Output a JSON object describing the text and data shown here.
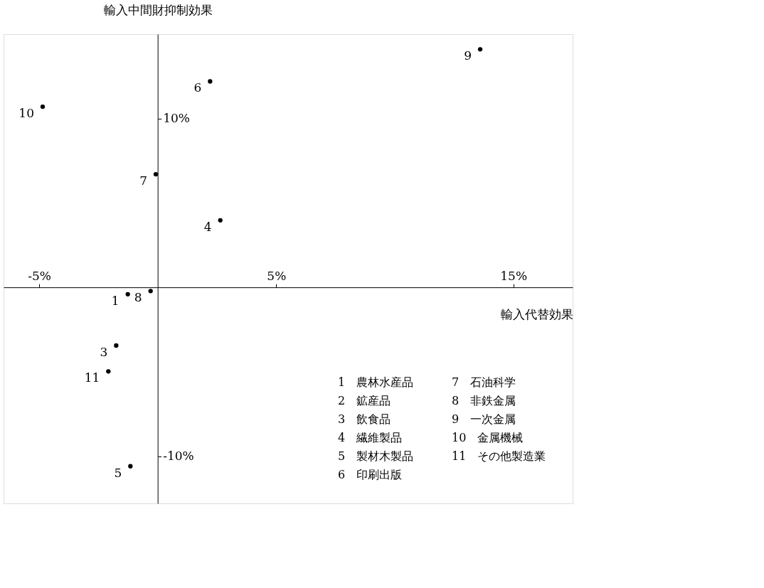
{
  "chart_data": {
    "type": "scatter",
    "xlabel": "輸入代替効果",
    "ylabel": "輸入中間財抑制効果",
    "xlim": [
      -6.5,
      17.5
    ],
    "ylim": [
      -12.8,
      15
    ],
    "xticks": [
      {
        "value": -5,
        "label": "-5%"
      },
      {
        "value": 5,
        "label": "5%"
      },
      {
        "value": 15,
        "label": "15%"
      }
    ],
    "yticks": [
      {
        "value": -10,
        "label": "-10%"
      },
      {
        "value": 10,
        "label": "10%"
      }
    ],
    "grid": false,
    "legend": false,
    "marker": "circle",
    "series": [
      {
        "name": "1",
        "color": "#000000",
        "x": [
          -1.26
        ],
        "values": [
          -0.41
        ]
      },
      {
        "name": "3",
        "color": "#000000",
        "x": [
          -1.75
        ],
        "values": [
          -3.45
        ]
      },
      {
        "name": "4",
        "color": "#000000",
        "x": [
          2.64
        ],
        "values": [
          3.97
        ]
      },
      {
        "name": "5",
        "color": "#000000",
        "x": [
          -1.15
        ],
        "values": [
          -10.6
        ]
      },
      {
        "name": "6",
        "color": "#000000",
        "x": [
          2.21
        ],
        "values": [
          12.2
        ]
      },
      {
        "name": "7",
        "color": "#000000",
        "x": [
          -0.08
        ],
        "values": [
          6.7
        ]
      },
      {
        "name": "8",
        "color": "#000000",
        "x": [
          -0.3
        ],
        "values": [
          -0.22
        ]
      },
      {
        "name": "9",
        "color": "#000000",
        "x": [
          13.6
        ],
        "values": [
          14.1
        ]
      },
      {
        "name": "10",
        "color": "#000000",
        "x": [
          -4.85
        ],
        "values": [
          10.7
        ]
      },
      {
        "name": "11",
        "color": "#000000",
        "x": [
          -2.08
        ],
        "values": [
          -4.98
        ]
      }
    ],
    "annotations": [
      "1　農林水産品",
      "2　鉱産品",
      "3　飲食品",
      "4　繊維製品",
      "5　製材木製品",
      "6　印刷出版",
      "7　石油科学",
      "8　非鉄金属",
      "9　一次金属",
      "10　金属機械",
      "11　その他製造業"
    ]
  }
}
